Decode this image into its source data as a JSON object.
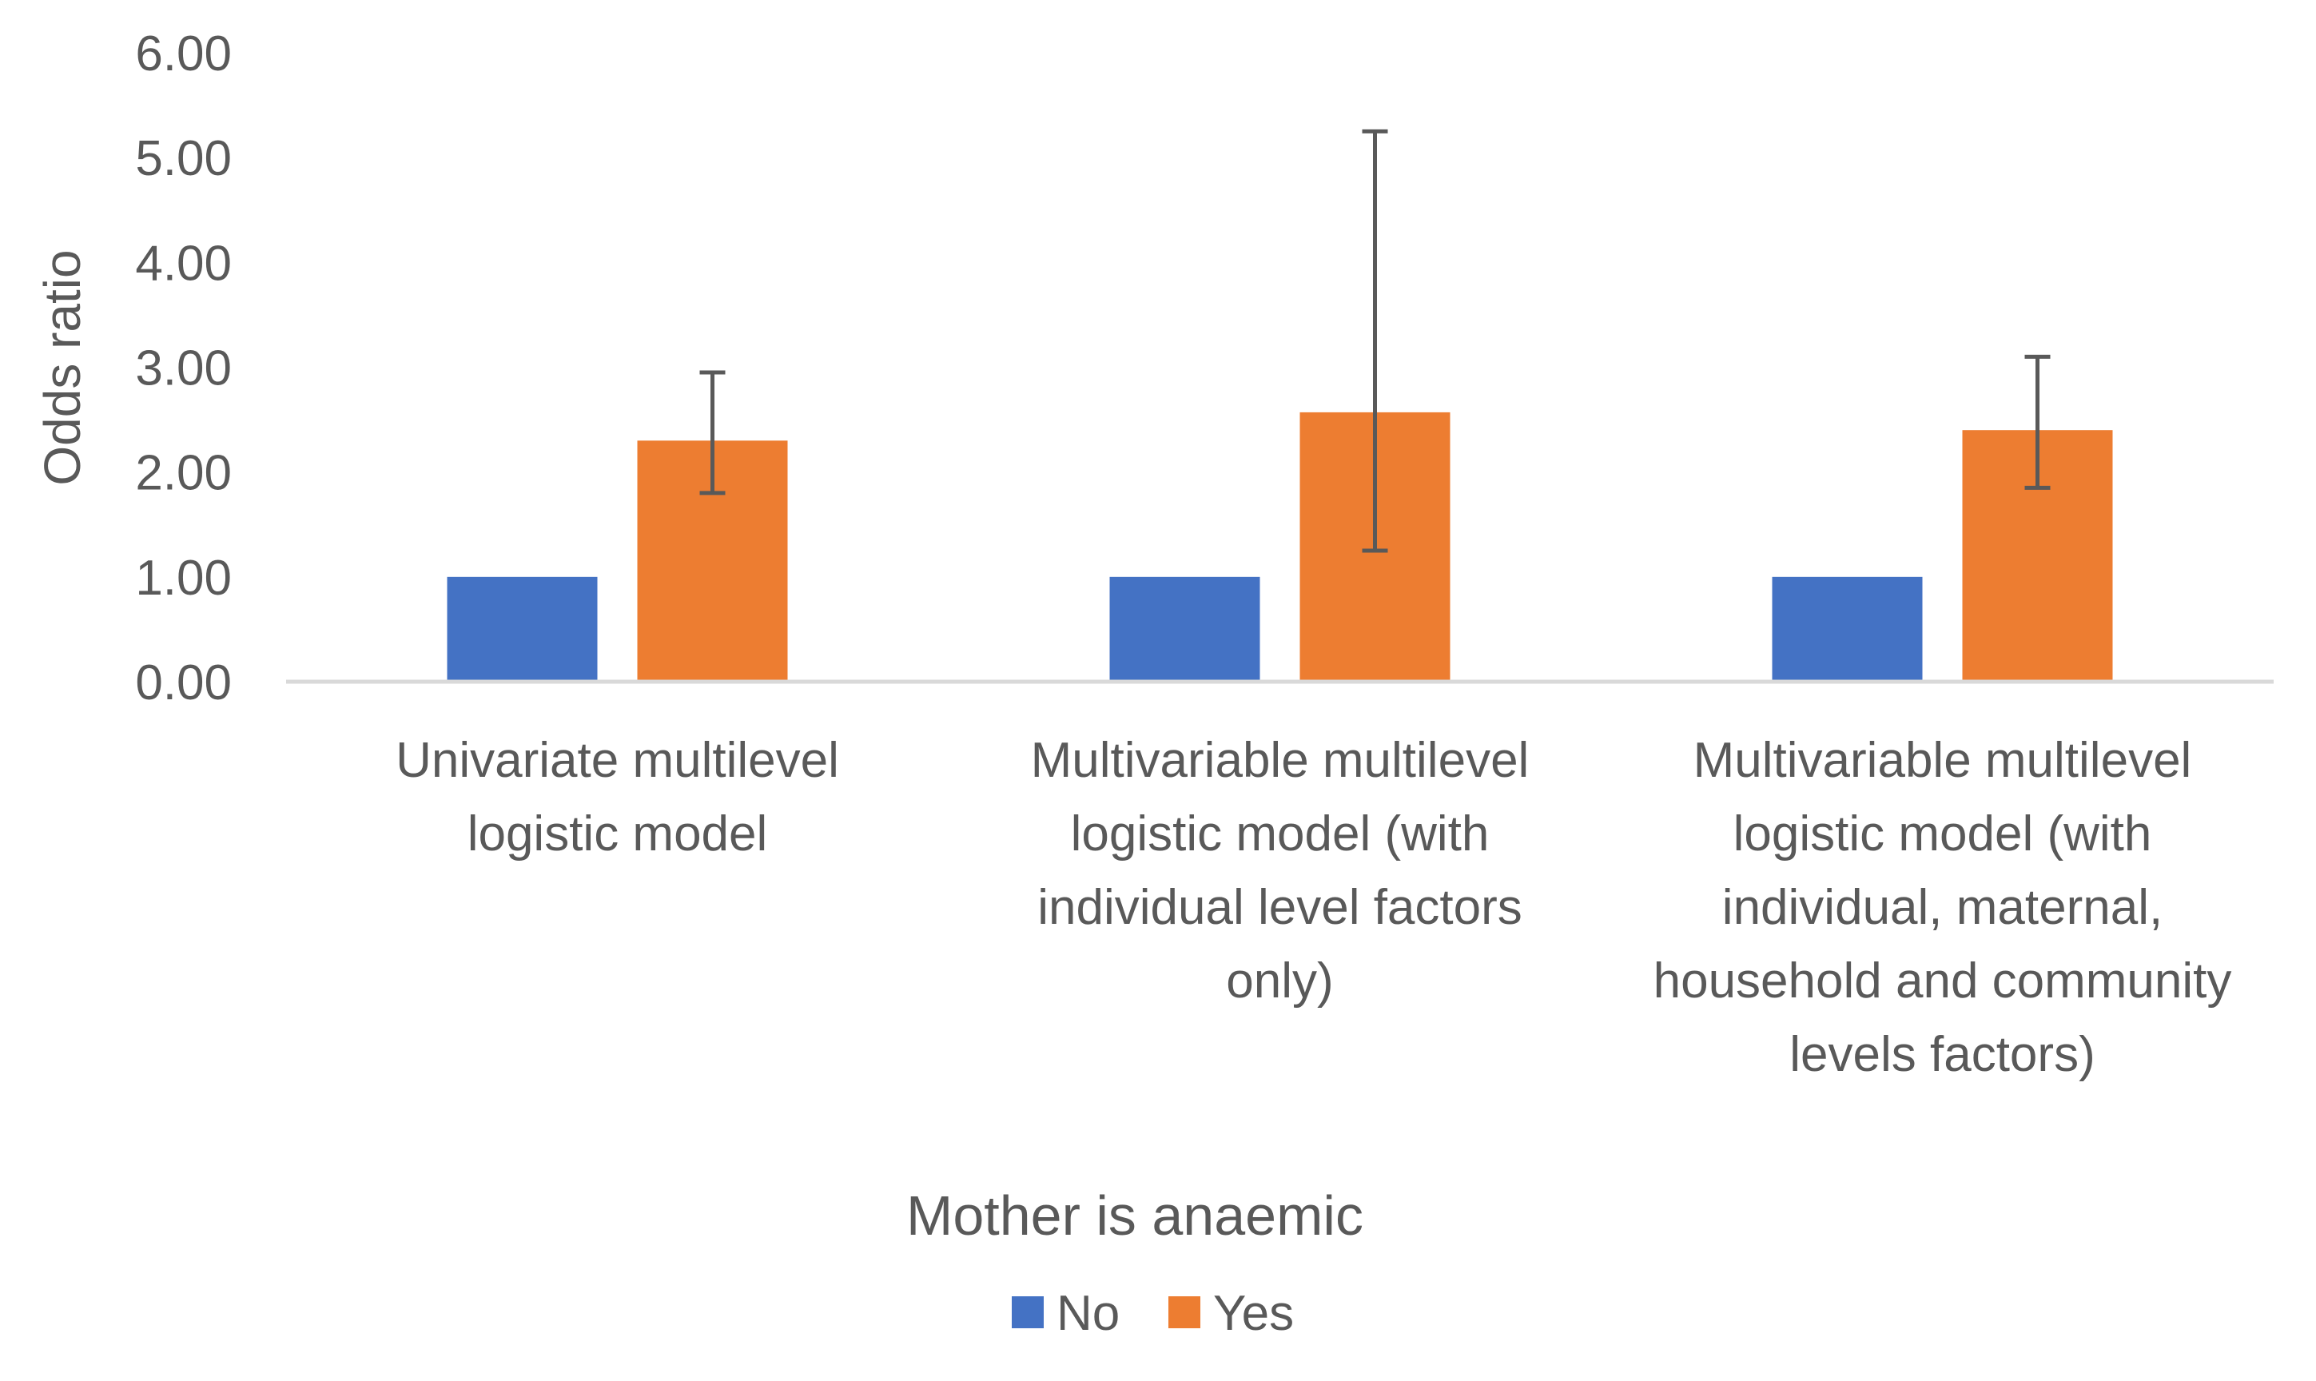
{
  "chart_data": {
    "type": "bar",
    "title": "",
    "xlabel": "Mother is anaemic",
    "ylabel": "Odds ratio",
    "ylim": [
      0,
      6
    ],
    "yticks": [
      "0.00",
      "1.00",
      "2.00",
      "3.00",
      "4.00",
      "5.00",
      "6.00"
    ],
    "grid": false,
    "legend_position": "bottom",
    "categories": [
      [
        "Univariate multilevel",
        "logistic model"
      ],
      [
        "Multivariable multilevel",
        "logistic model (with",
        "individual level factors",
        "only)"
      ],
      [
        "Multivariable multilevel",
        "logistic model (with",
        "individual, maternal,",
        "household and community",
        "levels factors)"
      ]
    ],
    "series": [
      {
        "name": "No",
        "color": "#4472C4",
        "values": [
          1.0,
          1.0,
          1.0
        ]
      },
      {
        "name": "Yes",
        "color": "#ED7D31",
        "values": [
          2.3,
          2.57,
          2.4
        ],
        "error_low": [
          1.8,
          1.25,
          1.85
        ],
        "error_high": [
          2.95,
          5.25,
          3.1
        ]
      }
    ]
  }
}
